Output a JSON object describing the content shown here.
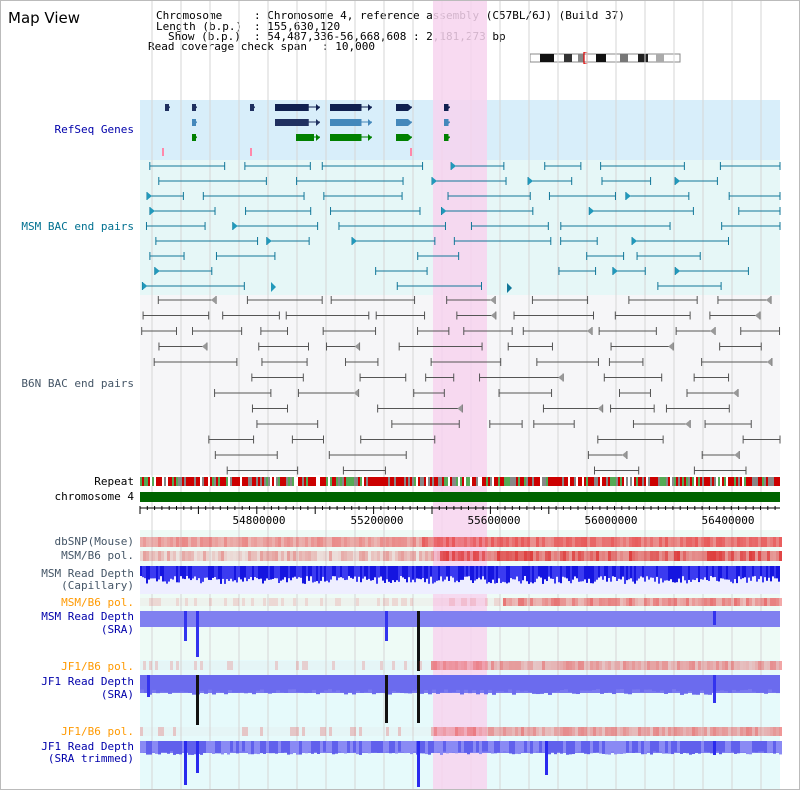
{
  "title": "Map View",
  "info": {
    "chromosome_key": "Chromosome",
    "chromosome_val": ": Chromosome 4, reference assembly (C57BL/6J) (Build 37)",
    "length_key": "Length (b.p.)",
    "length_val": ": 155,630,120",
    "show_key": "Show (b.p.)",
    "show_val": ": 54,487,336-56,668,608 : 2,181,273 bp",
    "coverage_key": "Read coverage check span",
    "coverage_val": ": 10,000"
  },
  "tracks": {
    "refseq": "RefSeq Genes",
    "msm_bac": "MSM BAC end pairs",
    "b6n_bac": "B6N BAC end pairs",
    "repeat": "Repeat",
    "chromosome": "chromosome 4",
    "dbsnp": "dbSNP(Mouse)",
    "msm_b6_pol_1": "MSM/B6 pol.",
    "msm_depth_cap_1": "MSM Read Depth",
    "msm_depth_cap_2": "(Capillary)",
    "msm_b6_pol_2": "MSM/B6 pol.",
    "msm_depth_sra_1": "MSM Read Depth",
    "msm_depth_sra_2": "(SRA)",
    "jf1_pol_1": "JF1/B6 pol.",
    "jf1_depth_sra_1": "JF1 Read Depth",
    "jf1_depth_sra_2": "(SRA)",
    "jf1_pol_2": "JF1/B6 pol.",
    "jf1_trim_1": "JF1 Read Depth",
    "jf1_trim_2": "(SRA trimmed)"
  },
  "axis": {
    "ticks": [
      "54800000",
      "55200000",
      "55600000",
      "56000000",
      "56400000"
    ]
  },
  "colors": {
    "refseq_bg": "#d8eefa",
    "bac_bg": "#e6f7f7",
    "b6n_bg": "#f6f6f8",
    "highlight": "#f7d4ef",
    "chromosome": "#006400",
    "depth": "#3b3bf0",
    "gene_navy": "#102050",
    "gene_green": "#008000",
    "gene_blue": "#4488bb"
  }
}
